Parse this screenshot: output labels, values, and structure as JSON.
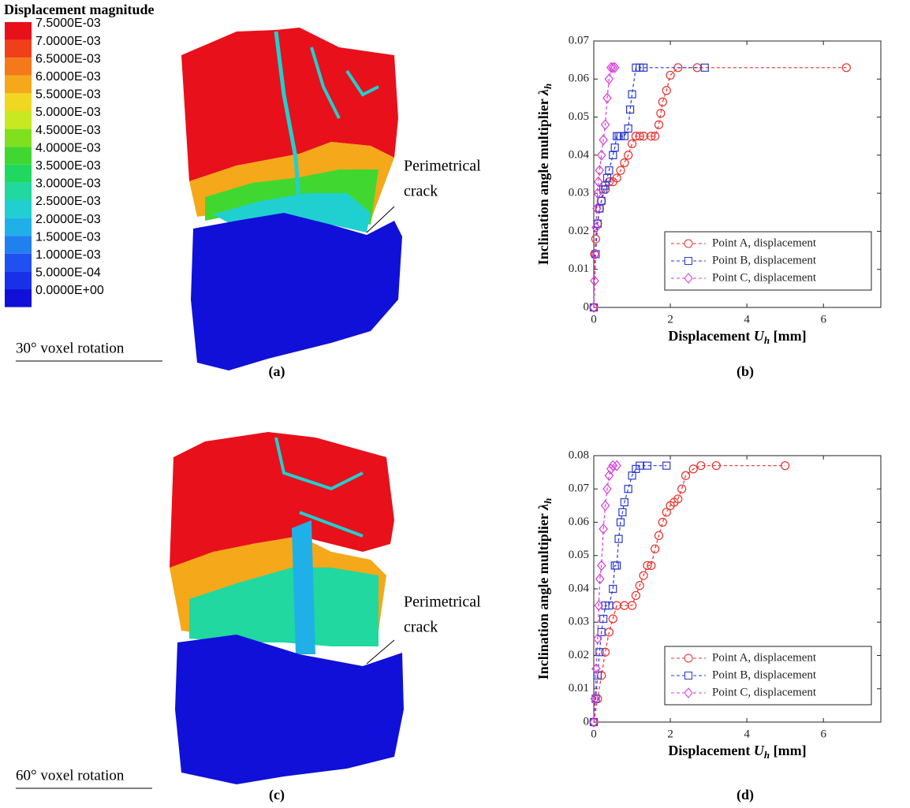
{
  "colorbar": {
    "title": "Displacement magnitude",
    "levels": [
      {
        "label": "7.5000E-03",
        "color": "#e8101a"
      },
      {
        "label": "7.0000E-03",
        "color": "#f0401a"
      },
      {
        "label": "6.5000E-03",
        "color": "#f5781a"
      },
      {
        "label": "6.0000E-03",
        "color": "#f5a81a"
      },
      {
        "label": "5.5000E-03",
        "color": "#f0d820"
      },
      {
        "label": "5.0000E-03",
        "color": "#c8e820"
      },
      {
        "label": "4.5000E-03",
        "color": "#80e020"
      },
      {
        "label": "4.0000E-03",
        "color": "#40d830"
      },
      {
        "label": "3.5000E-03",
        "color": "#20d860"
      },
      {
        "label": "3.0000E-03",
        "color": "#20d8a0"
      },
      {
        "label": "2.5000E-03",
        "color": "#20d0d0"
      },
      {
        "label": "2.0000E-03",
        "color": "#20b0e8"
      },
      {
        "label": "1.5000E-03",
        "color": "#2080f0"
      },
      {
        "label": "1.0000E-03",
        "color": "#2050f0"
      },
      {
        "label": "5.0000E-04",
        "color": "#1830e8"
      },
      {
        "label": "0.0000E+00",
        "color": "#1010d8"
      }
    ]
  },
  "panels": [
    {
      "label": "(a)",
      "caption": "30° voxel rotation",
      "annotation": [
        "Perimetrical",
        "crack"
      ]
    },
    {
      "label": "(b)"
    },
    {
      "label": "(c)",
      "caption": "60° voxel rotation",
      "annotation": [
        "Perimetrical",
        "crack"
      ]
    },
    {
      "label": "(d)"
    }
  ],
  "chart_data": [
    {
      "type": "line",
      "xlabel": {
        "text": "Displacement ",
        "symbol": "U",
        "subscript": "h",
        "unit": " [mm]"
      },
      "ylabel": {
        "text": "Inclination angle multiplier ",
        "symbol": "λ",
        "subscript": "h"
      },
      "xlim": [
        0,
        7.5
      ],
      "xticks": [
        0,
        2,
        4,
        6
      ],
      "ylim": [
        0,
        0.07
      ],
      "yticks": [
        0,
        0.01,
        0.02,
        0.03,
        0.04,
        0.05,
        0.06,
        0.07
      ],
      "legend": "lower right",
      "series": [
        {
          "name": "Point A, displacement",
          "color": "#e8302a",
          "marker": "circle",
          "linestyle": "dashed",
          "x": [
            0,
            0.02,
            0.05,
            0.1,
            0.15,
            0.2,
            0.3,
            0.4,
            0.5,
            0.6,
            0.7,
            0.8,
            0.9,
            1.0,
            1.1,
            1.2,
            1.3,
            1.5,
            1.6,
            1.7,
            1.75,
            1.8,
            1.9,
            2.0,
            2.2,
            2.7,
            6.6
          ],
          "values": [
            0,
            0.014,
            0.018,
            0.022,
            0.026,
            0.028,
            0.031,
            0.033,
            0.033,
            0.034,
            0.036,
            0.038,
            0.04,
            0.043,
            0.045,
            0.045,
            0.045,
            0.045,
            0.045,
            0.048,
            0.051,
            0.054,
            0.057,
            0.061,
            0.063,
            0.063,
            0.063
          ]
        },
        {
          "name": "Point B, displacement",
          "color": "#2a3ad0",
          "marker": "square",
          "linestyle": "dashed",
          "x": [
            0,
            0.05,
            0.1,
            0.15,
            0.2,
            0.25,
            0.3,
            0.35,
            0.4,
            0.5,
            0.55,
            0.6,
            0.65,
            0.7,
            0.8,
            0.9,
            0.95,
            1.0,
            1.1,
            1.2,
            1.3,
            2.9
          ],
          "values": [
            0,
            0.014,
            0.022,
            0.026,
            0.028,
            0.031,
            0.032,
            0.034,
            0.036,
            0.04,
            0.042,
            0.045,
            0.045,
            0.045,
            0.045,
            0.047,
            0.052,
            0.056,
            0.063,
            0.063,
            0.063,
            0.063
          ]
        },
        {
          "name": "Point C, displacement",
          "color": "#d83ad8",
          "marker": "diamond",
          "linestyle": "dashed",
          "x": [
            0,
            0.02,
            0.04,
            0.06,
            0.08,
            0.1,
            0.12,
            0.15,
            0.2,
            0.25,
            0.3,
            0.35,
            0.4,
            0.45,
            0.5,
            0.55
          ],
          "values": [
            0,
            0.007,
            0.014,
            0.021,
            0.026,
            0.03,
            0.033,
            0.036,
            0.04,
            0.044,
            0.048,
            0.055,
            0.06,
            0.063,
            0.063,
            0.063
          ]
        }
      ]
    },
    {
      "type": "line",
      "xlabel": {
        "text": "Displacement ",
        "symbol": "U",
        "subscript": "h",
        "unit": " [mm]"
      },
      "ylabel": {
        "text": "Inclination angle multiplier ",
        "symbol": "λ",
        "subscript": "h"
      },
      "xlim": [
        0,
        7.5
      ],
      "xticks": [
        0,
        2,
        4,
        6
      ],
      "ylim": [
        0,
        0.08
      ],
      "yticks": [
        0,
        0.01,
        0.02,
        0.03,
        0.04,
        0.05,
        0.06,
        0.07,
        0.08
      ],
      "legend": "lower right",
      "series": [
        {
          "name": "Point A, displacement",
          "color": "#e8302a",
          "marker": "circle",
          "linestyle": "dashed",
          "x": [
            0,
            0.1,
            0.2,
            0.3,
            0.4,
            0.5,
            0.6,
            0.8,
            1.0,
            1.1,
            1.2,
            1.3,
            1.4,
            1.5,
            1.6,
            1.7,
            1.8,
            1.9,
            2.0,
            2.1,
            2.2,
            2.3,
            2.4,
            2.6,
            2.8,
            3.2,
            5.0
          ],
          "values": [
            0,
            0.007,
            0.014,
            0.021,
            0.027,
            0.031,
            0.035,
            0.035,
            0.035,
            0.038,
            0.041,
            0.044,
            0.047,
            0.047,
            0.052,
            0.056,
            0.06,
            0.063,
            0.065,
            0.066,
            0.067,
            0.07,
            0.074,
            0.076,
            0.077,
            0.077,
            0.077
          ]
        },
        {
          "name": "Point B, displacement",
          "color": "#2a3ad0",
          "marker": "square",
          "linestyle": "dashed",
          "x": [
            0,
            0.05,
            0.1,
            0.15,
            0.2,
            0.25,
            0.3,
            0.4,
            0.5,
            0.55,
            0.6,
            0.65,
            0.7,
            0.75,
            0.8,
            0.9,
            1.0,
            1.1,
            1.2,
            1.4,
            1.9
          ],
          "values": [
            0,
            0.007,
            0.014,
            0.021,
            0.027,
            0.031,
            0.035,
            0.035,
            0.04,
            0.047,
            0.047,
            0.055,
            0.06,
            0.063,
            0.066,
            0.07,
            0.074,
            0.076,
            0.077,
            0.077,
            0.077
          ]
        },
        {
          "name": "Point C, displacement",
          "color": "#d83ad8",
          "marker": "diamond",
          "linestyle": "dashed",
          "x": [
            0,
            0.03,
            0.06,
            0.1,
            0.13,
            0.16,
            0.2,
            0.25,
            0.3,
            0.35,
            0.4,
            0.45,
            0.5,
            0.6
          ],
          "values": [
            0,
            0.007,
            0.016,
            0.025,
            0.035,
            0.043,
            0.047,
            0.058,
            0.065,
            0.07,
            0.074,
            0.076,
            0.077,
            0.077
          ]
        }
      ]
    }
  ]
}
